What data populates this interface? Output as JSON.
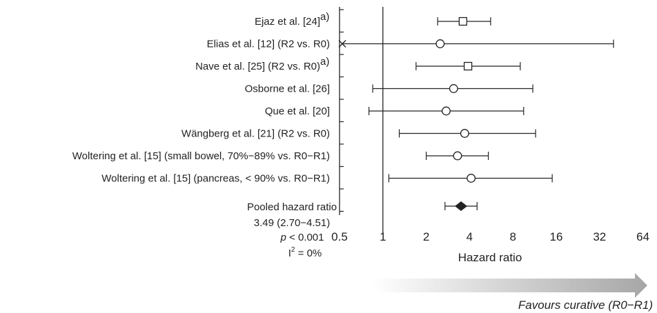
{
  "chart_data": {
    "type": "forest",
    "xlabel": "Hazard ratio",
    "x_scale": "log2",
    "xlim": [
      0.5,
      64
    ],
    "x_ticks": [
      "0.5",
      "1",
      "2",
      "4",
      "8",
      "16",
      "32",
      "64"
    ],
    "x_tick_values": [
      0.5,
      1,
      2,
      4,
      8,
      16,
      32,
      64
    ],
    "reference_line": 1,
    "studies": [
      {
        "label": "Ejaz et al. [24]",
        "superscript": "a)",
        "marker": "square",
        "estimate": 3.6,
        "ci_low": 2.4,
        "ci_high": 5.6,
        "lower_truncated": false
      },
      {
        "label": "Elias et al. [12] (R2 vs. R0)",
        "superscript": "",
        "marker": "circle",
        "estimate": 2.5,
        "ci_low": 0.5,
        "ci_high": 40,
        "lower_truncated": true
      },
      {
        "label": "Nave et al. [25] (R2 vs. R0)",
        "superscript": "a)",
        "marker": "square",
        "estimate": 3.9,
        "ci_low": 1.7,
        "ci_high": 9.0,
        "lower_truncated": false
      },
      {
        "label": "Osborne et al. [26]",
        "superscript": "",
        "marker": "circle",
        "estimate": 3.1,
        "ci_low": 0.85,
        "ci_high": 11.0,
        "lower_truncated": false
      },
      {
        "label": "Que et al. [20]",
        "superscript": "",
        "marker": "circle",
        "estimate": 2.75,
        "ci_low": 0.8,
        "ci_high": 9.5,
        "lower_truncated": false
      },
      {
        "label": "Wängberg et al. [21] (R2 vs. R0)",
        "superscript": "",
        "marker": "circle",
        "estimate": 3.7,
        "ci_low": 1.3,
        "ci_high": 11.5,
        "lower_truncated": false
      },
      {
        "label": "Woltering et al. [15] (small bowel, 70%−89% vs. R0−R1)",
        "superscript": "",
        "marker": "circle",
        "estimate": 3.3,
        "ci_low": 2.0,
        "ci_high": 5.4,
        "lower_truncated": false
      },
      {
        "label": "Woltering et al. [15] (pancreas, < 90% vs. R0−R1)",
        "superscript": "",
        "marker": "circle",
        "estimate": 4.1,
        "ci_low": 1.1,
        "ci_high": 15.0,
        "lower_truncated": false
      }
    ],
    "pooled": {
      "label": "Pooled hazard ratio",
      "ci_text": "3.49 (2.70−4.51)",
      "p_prefix": "p",
      "p_suffix": " < 0.001",
      "i2_prefix": "I",
      "i2_sup": "2",
      "i2_suffix": " = 0%",
      "estimate": 3.49,
      "ci_low": 2.7,
      "ci_high": 4.51
    },
    "favours_text": "Favours curative (R0−R1)",
    "colors": {
      "line": "#222222",
      "diamond": "#222222",
      "marker_fill": "#ffffff",
      "arrow_start": "#ffffff",
      "arrow_end": "#a6a6a6"
    }
  }
}
